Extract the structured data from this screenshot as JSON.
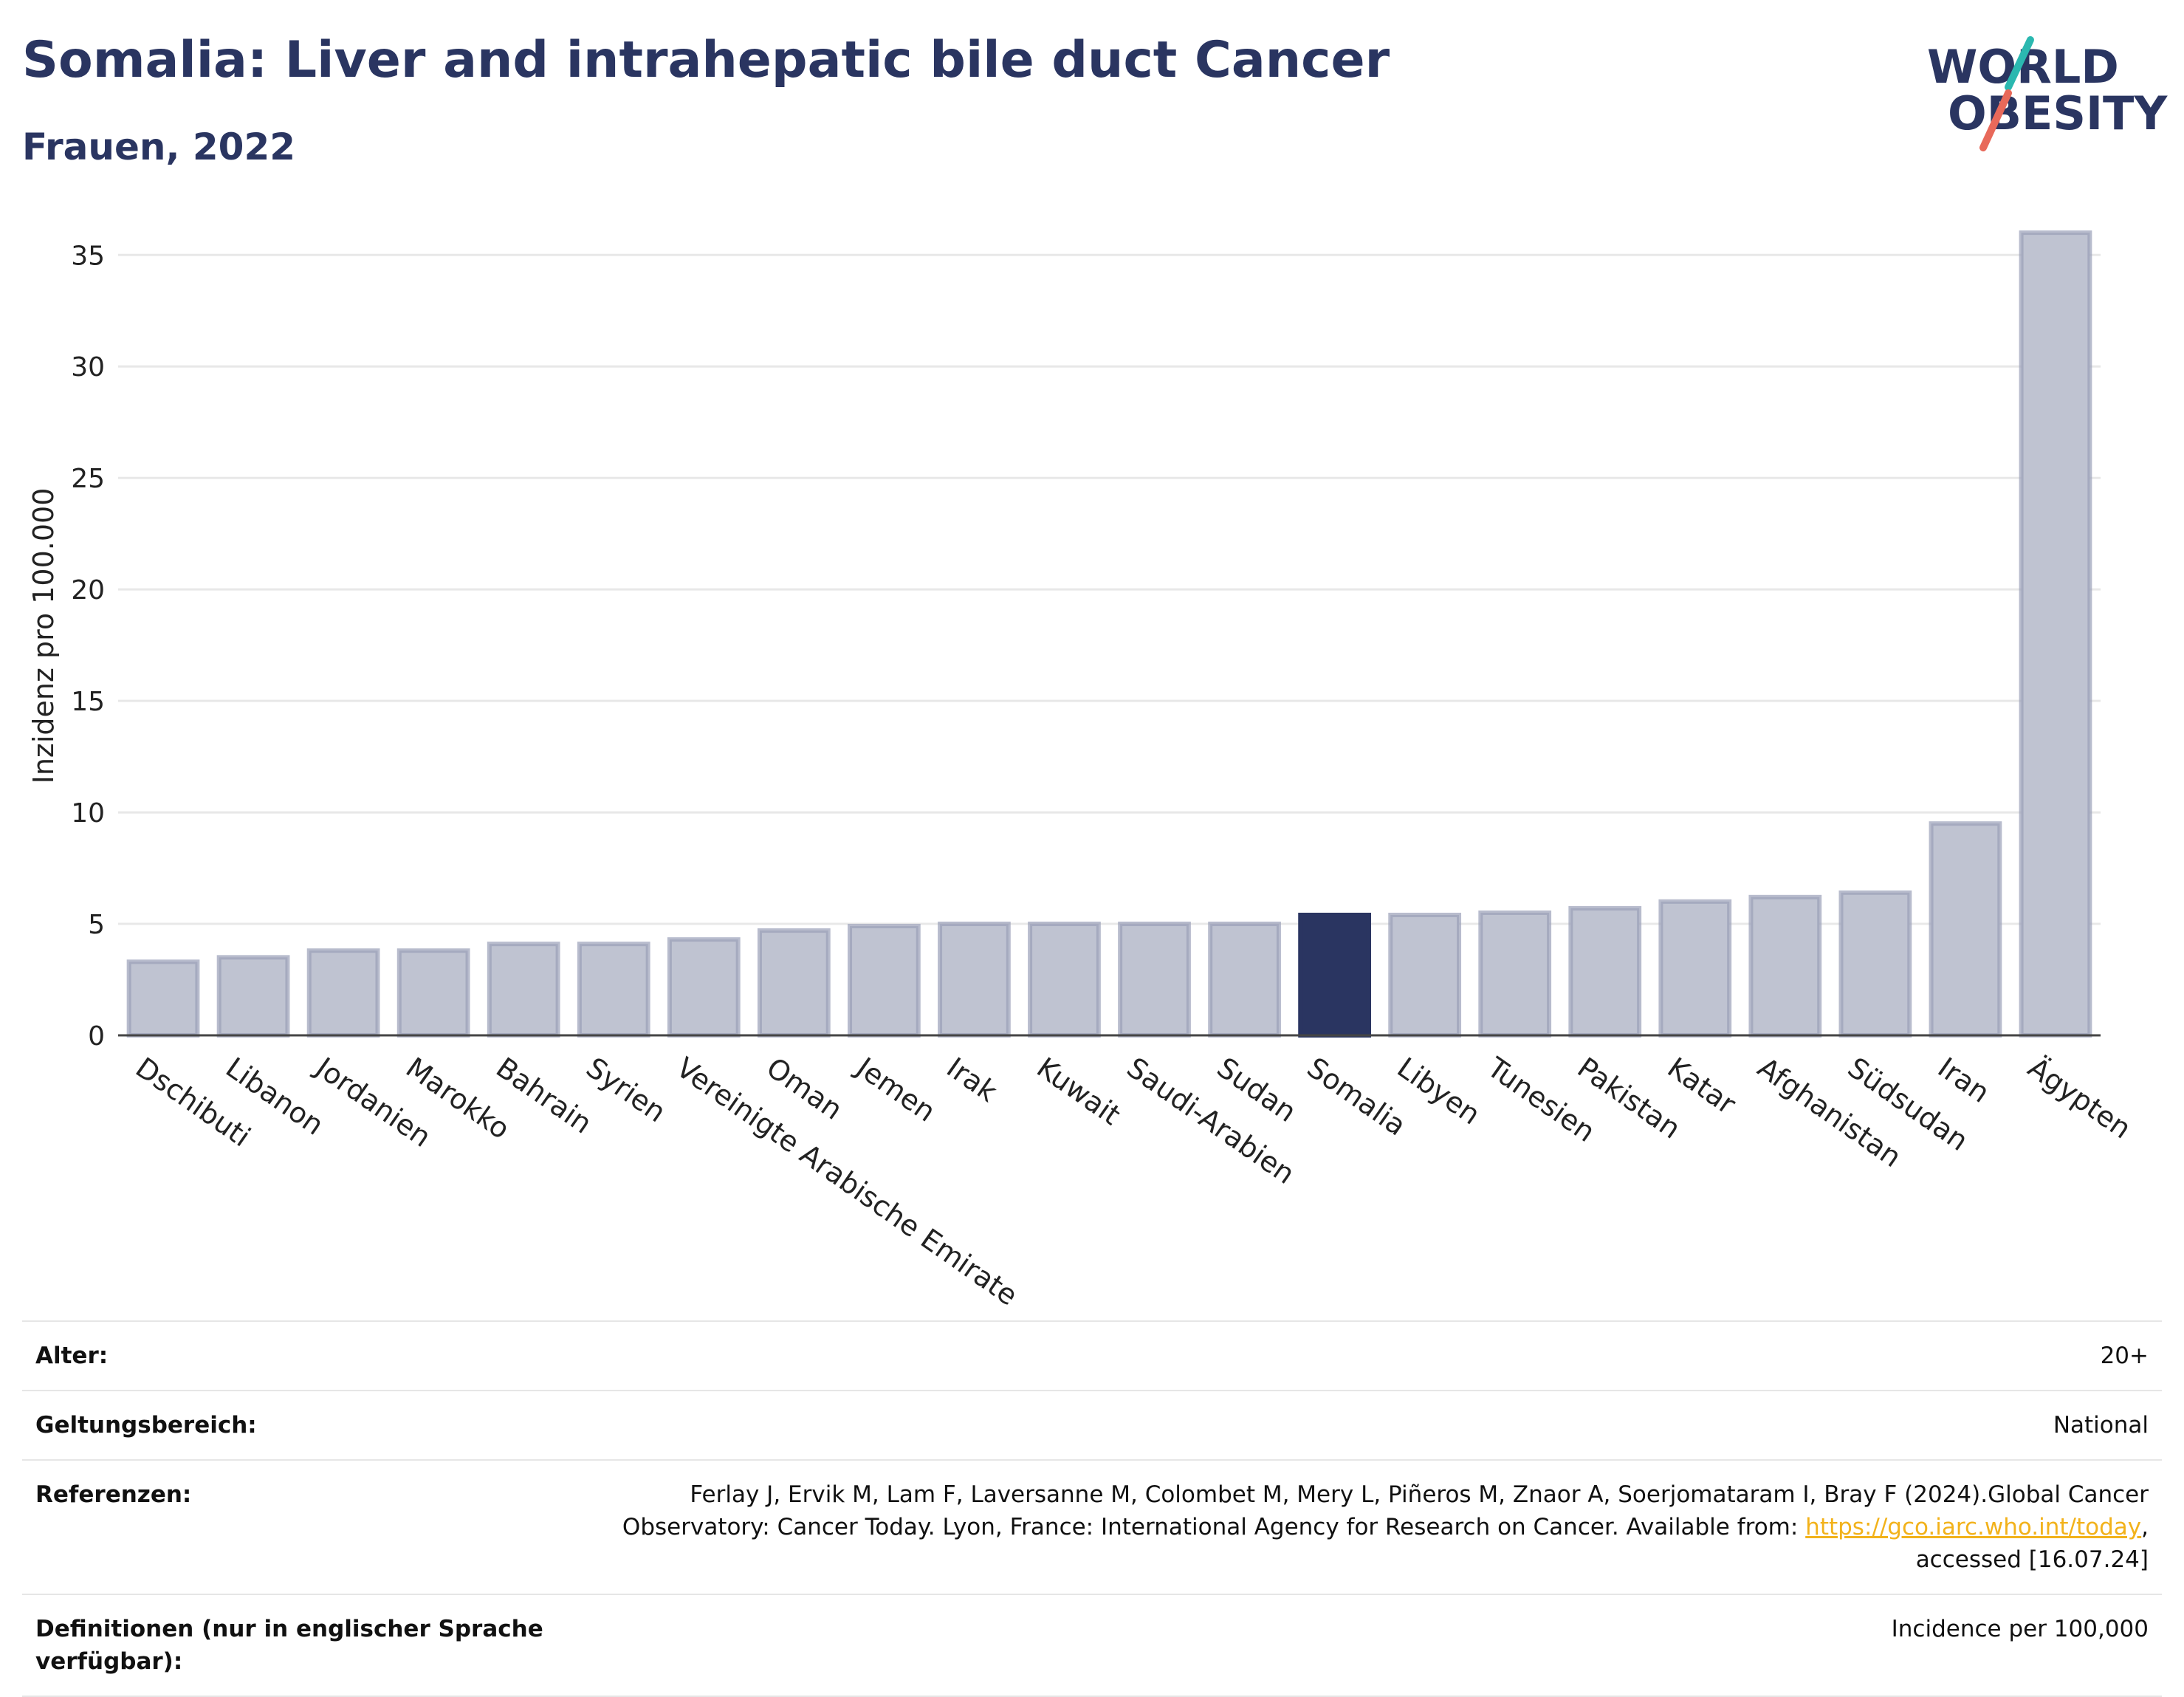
{
  "header": {
    "title": "Somalia: Liver and intrahepatic bile duct Cancer",
    "subtitle": "Frauen, 2022"
  },
  "logo": {
    "line1": "WORLD",
    "line2": "OBESITY"
  },
  "chart_data": {
    "type": "bar",
    "ylabel": "Inzidenz pro 100.000",
    "ylim": [
      0,
      36.5
    ],
    "yticks": [
      0,
      5,
      10,
      15,
      20,
      25,
      30,
      35
    ],
    "grid": true,
    "highlight": "Somalia",
    "colors": {
      "bar": "#bfc3d1",
      "bar_stroke": "#9aa0b8",
      "highlight": "#2a3561",
      "grid": "#e8e8e8",
      "axis": "#444444"
    },
    "categories": [
      "Dschibuti",
      "Libanon",
      "Jordanien",
      "Marokko",
      "Bahrain",
      "Syrien",
      "Vereinigte Arabische Emirate",
      "Oman",
      "Jemen",
      "Irak",
      "Kuwait",
      "Saudi-Arabien",
      "Sudan",
      "Somalia",
      "Libyen",
      "Tunesien",
      "Pakistan",
      "Katar",
      "Afghanistan",
      "Südsudan",
      "Iran",
      "Ägypten"
    ],
    "values": [
      3.3,
      3.5,
      3.8,
      3.8,
      4.1,
      4.1,
      4.3,
      4.7,
      4.9,
      5.0,
      5.0,
      5.0,
      5.0,
      5.4,
      5.4,
      5.5,
      5.7,
      6.0,
      6.2,
      6.4,
      9.5,
      36.0
    ]
  },
  "meta": {
    "age_label": "Alter:",
    "age_value": "20+",
    "scope_label": "Geltungsbereich:",
    "scope_value": "National",
    "ref_label": "Referenzen:",
    "ref_text_1": "Ferlay J, Ervik M, Lam F, Laversanne M, Colombet M, Mery L, Piñeros M, Znaor A, Soerjomataram I, Bray F (2024).Global Cancer Observatory: Cancer Today. Lyon, France: International Agency for Research on Cancer. Available from: ",
    "ref_link": "https://gco.iarc.who.int/today",
    "ref_text_2": ", accessed [16.07.24]",
    "def_label": "Definitionen (nur in englischer Sprache verfügbar):",
    "def_value": "Incidence per 100,000"
  }
}
